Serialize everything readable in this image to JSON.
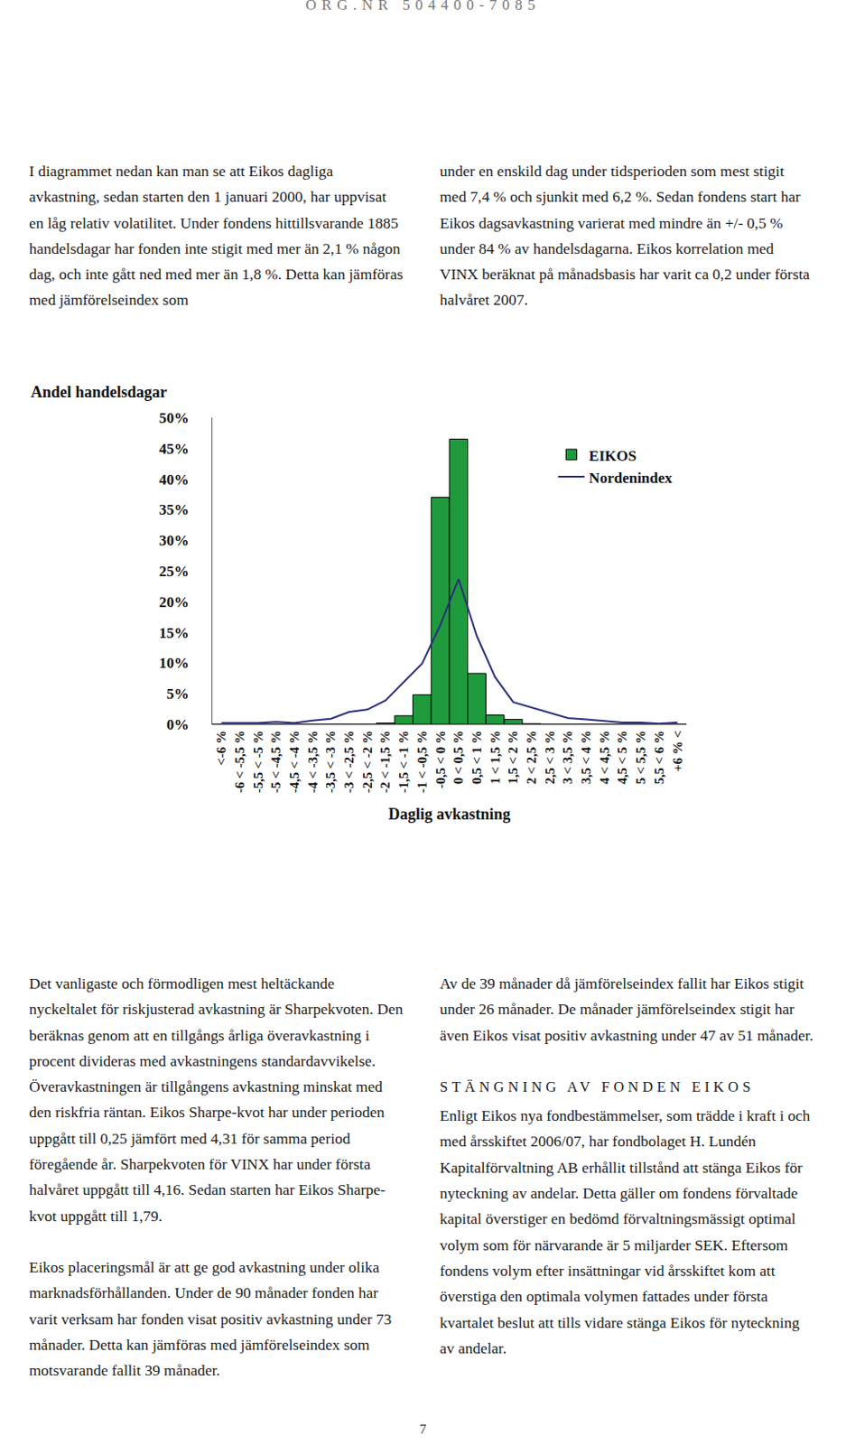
{
  "header": "ORG.NR 504400-7085",
  "intro": {
    "left": "I diagrammet nedan kan man se att Eikos dagliga avkastning, sedan starten den 1 januari 2000, har uppvisat en låg relativ volatilitet. Under fondens hittillsvarande 1885 handelsdagar har fonden inte stigit med mer än 2,1 % någon dag, och inte gått ned med mer än 1,8 %. Detta kan jämföras med jämförelseindex som",
    "right": "under en enskild dag under tidsperioden som mest stigit med 7,4 % och sjunkit med 6,2 %. Sedan fondens start har Eikos dagsavkastning varierat med mindre än +/- 0,5 % under 84 % av handelsdagarna. Eikos korrelation med VINX beräknat på månadsbasis har varit ca 0,2 under första halvåret 2007."
  },
  "chart_data": {
    "type": "bar",
    "y_label": "Andel handelsdagar",
    "x_label": "Daglig avkastning",
    "categories": [
      "<-6 %",
      "-6 < -5,5 %",
      "-5,5 < -5 %",
      "-5 < -4,5 %",
      "-4,5 < -4 %",
      "-4 < -3,5 %",
      "-3,5 < -3 %",
      "-3 < -2,5 %",
      "-2,5 < -2 %",
      "-2 < -1,5 %",
      "-1,5 < -1 %",
      "-1 < -0,5 %",
      "-0,5 < 0 %",
      "0 < 0,5 %",
      "0,5 < 1 %",
      "1 < 1,5 %",
      "1,5 < 2 %",
      "2 < 2,5 %",
      "2,5 < 3 %",
      "3 < 3,5 %",
      "3,5 < 4 %",
      "4 < 4,5 %",
      "4,5 < 5 %",
      "5 < 5,5 %",
      "5,5 < 6 %",
      "+6 % <"
    ],
    "series": [
      {
        "name": "EIKOS",
        "type": "bar",
        "color": "#1f9a3c",
        "values": [
          0,
          0,
          0,
          0,
          0,
          0,
          0,
          0,
          0,
          0.2,
          1.4,
          4.8,
          37.0,
          46.5,
          8.3,
          1.5,
          0.8,
          0.1,
          0,
          0,
          0,
          0,
          0,
          0,
          0,
          0
        ]
      },
      {
        "name": "Nordenindex",
        "type": "line",
        "color": "#2b2f7c",
        "values": [
          0.2,
          0.2,
          0.2,
          0.4,
          0.2,
          0.6,
          0.9,
          2.0,
          2.4,
          3.9,
          6.9,
          9.9,
          16.2,
          23.7,
          14.4,
          7.7,
          3.6,
          2.7,
          1.8,
          1.0,
          0.8,
          0.6,
          0.3,
          0.3,
          0.1,
          0.3
        ]
      }
    ],
    "ylim": [
      0,
      50
    ],
    "yticks": [
      {
        "value": 0,
        "label": "0%"
      },
      {
        "value": 5,
        "label": "5%"
      },
      {
        "value": 10,
        "label": "10%"
      },
      {
        "value": 15,
        "label": "15%"
      },
      {
        "value": 20,
        "label": "20%"
      },
      {
        "value": 25,
        "label": "25%"
      },
      {
        "value": 30,
        "label": "30%"
      },
      {
        "value": 35,
        "label": "35%"
      },
      {
        "value": 40,
        "label": "40%"
      },
      {
        "value": 45,
        "label": "45%"
      },
      {
        "value": 50,
        "label": "50%"
      }
    ],
    "grid": false,
    "legend": "top right"
  },
  "body": {
    "left": [
      "Det vanligaste och förmodligen mest heltäckande nyckeltalet för riskjusterad avkastning är Sharpekvoten. Den beräknas genom att en tillgångs årliga överavkastning i procent divideras med avkastningens standardavvikelse. Överavkastningen är tillgångens avkastning minskat med den riskfria räntan. Eikos Sharpe-kvot har under perioden uppgått till 0,25 jämfört med 4,31 för samma period föregående år. Sharpekvoten för VINX har under första halvåret uppgått till 4,16. Sedan starten har Eikos Sharpe-kvot uppgått till 1,79.",
      "Eikos placeringsmål är att ge god avkastning under olika marknadsförhållanden. Under de 90 månader fonden har varit verksam har fonden visat positiv avkastning under 73 månader. Detta kan jämföras med jämförelseindex som motsvarande fallit 39 månader."
    ],
    "right": [
      "Av de 39 månader då jämförelseindex fallit har Eikos stigit under 26 månader. De månader jämförelseindex stigit har även Eikos visat positiv avkastning under 47 av 51 månader."
    ],
    "heading": "STÄNGNING AV FONDEN EIKOS",
    "right_after_heading": [
      "Enligt Eikos nya fondbestämmelser, som trädde i kraft i och med årsskiftet 2006/07, har fondbolaget H. Lundén Kapitalförvaltning AB erhållit tillstånd att stänga Eikos för nyteckning av andelar. Detta gäller om fondens förvaltade kapital överstiger en bedömd förvaltningsmässigt optimal volym som för närvarande är 5 miljarder SEK. Eftersom fondens volym efter insättningar vid årsskiftet kom att överstiga den optimala volymen fattades under första kvartalet beslut att tills vidare stänga Eikos för nyteckning av andelar."
    ]
  },
  "page_number": 7
}
